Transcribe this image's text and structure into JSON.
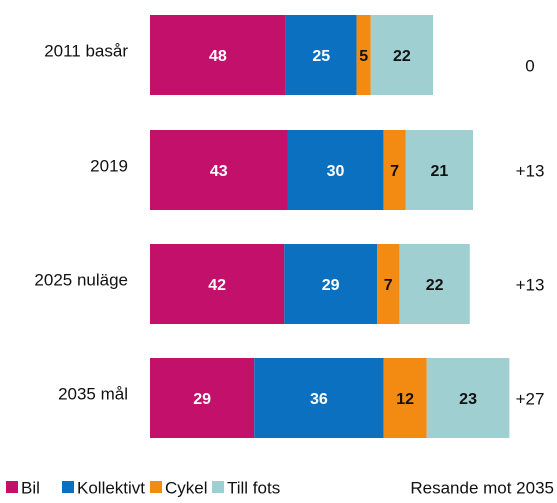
{
  "chart_data": {
    "type": "bar",
    "orientation": "horizontal",
    "stacked": true,
    "categories": [
      "2011 basår",
      "2019",
      "2025 nuläge",
      "2035 mål"
    ],
    "series": [
      {
        "name": "Bil",
        "color": "#c3106b",
        "values": [
          48,
          43,
          42,
          29
        ]
      },
      {
        "name": "Kollektivt",
        "color": "#0a70bf",
        "values": [
          25,
          30,
          29,
          36
        ]
      },
      {
        "name": "Cykel",
        "color": "#f38a12",
        "values": [
          5,
          7,
          7,
          12
        ]
      },
      {
        "name": "Till fots",
        "color": "#9fcfd1",
        "values": [
          22,
          21,
          22,
          23
        ]
      }
    ],
    "growth": {
      "name": "Resande mot 2035",
      "values": [
        0,
        13,
        13,
        27
      ],
      "value_labels": [
        "0",
        "+13",
        "+13",
        "+27"
      ]
    },
    "legend": "bottom"
  }
}
